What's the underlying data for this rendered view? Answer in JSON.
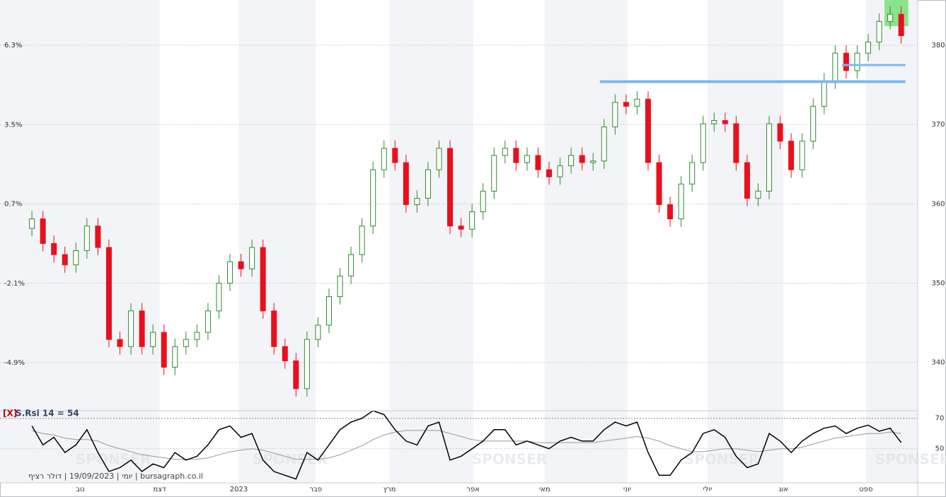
{
  "chart_data": {
    "type": "candlestick",
    "open": [
      356.9,
      358.1,
      355.0,
      353.6,
      352.3,
      354.1,
      357.2,
      354.5,
      342.9,
      342.0,
      346.5,
      342.0,
      343.8,
      339.4,
      342.0,
      342.9,
      343.8,
      346.5,
      350.0,
      352.7,
      351.8,
      354.5,
      346.5,
      342.0,
      340.2,
      336.7,
      342.9,
      344.7,
      348.3,
      350.9,
      353.6,
      357.2,
      364.3,
      367.0,
      365.2,
      359.9,
      360.7,
      364.3,
      367.0,
      357.2,
      356.8,
      359.0,
      361.6,
      366.1,
      367.0,
      365.2,
      366.1,
      364.3,
      363.4,
      364.8,
      366.1,
      365.2,
      365.4,
      369.7,
      372.8,
      372.3,
      373.2,
      365.2,
      359.9,
      358.1,
      362.5,
      365.2,
      370.1,
      370.5,
      370.1,
      365.2,
      360.7,
      361.6,
      370.1,
      367.9,
      364.3,
      367.9,
      372.3,
      375.5,
      379.0,
      376.8,
      379.0,
      380.4,
      383.0,
      383.9
    ],
    "high": [
      359.1,
      359.1,
      356.0,
      354.6,
      355.1,
      358.2,
      358.2,
      355.5,
      343.9,
      347.5,
      347.5,
      344.8,
      344.8,
      343.0,
      343.9,
      344.8,
      347.5,
      351.0,
      353.7,
      353.7,
      355.5,
      355.5,
      347.5,
      343.0,
      341.2,
      343.9,
      345.7,
      349.3,
      351.9,
      354.6,
      358.2,
      365.3,
      368.0,
      368.0,
      366.2,
      361.7,
      365.3,
      368.0,
      368.0,
      358.2,
      360.0,
      362.6,
      367.1,
      368.0,
      368.0,
      367.1,
      367.1,
      365.3,
      365.8,
      367.1,
      367.1,
      366.4,
      370.7,
      373.8,
      373.8,
      374.2,
      374.2,
      366.2,
      360.9,
      363.5,
      366.2,
      371.1,
      371.5,
      371.5,
      371.1,
      366.2,
      362.6,
      371.1,
      371.1,
      368.9,
      368.9,
      373.3,
      376.5,
      380.0,
      380.0,
      380.0,
      381.4,
      384.0,
      384.9,
      384.9
    ],
    "low": [
      355.9,
      354.0,
      352.6,
      351.3,
      351.3,
      353.1,
      353.5,
      341.9,
      341.0,
      341.0,
      341.0,
      341.0,
      338.4,
      338.4,
      341.0,
      341.9,
      342.8,
      345.5,
      349.0,
      350.8,
      350.8,
      345.5,
      341.0,
      339.2,
      335.7,
      335.7,
      341.9,
      343.7,
      347.3,
      349.9,
      352.6,
      356.2,
      363.3,
      364.2,
      358.9,
      358.9,
      359.7,
      363.3,
      356.2,
      355.8,
      355.8,
      358.0,
      360.6,
      365.1,
      364.2,
      364.2,
      363.3,
      362.4,
      362.4,
      363.8,
      364.2,
      364.2,
      364.4,
      368.7,
      371.3,
      371.3,
      364.2,
      358.9,
      357.1,
      357.1,
      361.5,
      364.2,
      369.1,
      369.1,
      364.2,
      359.7,
      359.7,
      360.6,
      366.9,
      363.3,
      363.3,
      366.9,
      371.3,
      374.5,
      375.8,
      375.8,
      378.0,
      379.4,
      382.0,
      380.2
    ],
    "close": [
      358.1,
      355.0,
      353.6,
      352.3,
      354.1,
      357.2,
      354.5,
      342.9,
      342.0,
      346.5,
      342.0,
      343.8,
      339.4,
      342.0,
      342.9,
      343.8,
      346.5,
      350.0,
      352.7,
      351.8,
      354.5,
      346.5,
      342.0,
      340.2,
      336.7,
      342.9,
      344.7,
      348.3,
      350.9,
      353.6,
      357.2,
      364.3,
      367.0,
      365.2,
      359.9,
      360.7,
      364.3,
      367.0,
      357.2,
      356.8,
      359.0,
      361.6,
      366.1,
      367.0,
      365.2,
      366.1,
      364.3,
      363.4,
      364.8,
      366.1,
      365.2,
      365.4,
      369.7,
      372.8,
      372.3,
      373.2,
      365.2,
      359.9,
      358.1,
      362.5,
      365.2,
      370.1,
      370.5,
      370.1,
      365.2,
      360.7,
      361.6,
      370.1,
      367.9,
      364.3,
      367.9,
      372.3,
      375.5,
      379.0,
      376.8,
      379.0,
      380.4,
      383.0,
      383.9,
      381.2
    ],
    "up_color": "#2e8b2e",
    "down_color": "#e8101c",
    "ylim": [
      334.0,
      385.7
    ],
    "yticks": [
      380,
      370,
      360,
      350,
      340
    ],
    "y2lim": [
      -6.57,
      7.9
    ],
    "y2ticks": [
      {
        "value": 6.3,
        "label": "6.3%"
      },
      {
        "value": 3.5,
        "label": "3.5%"
      },
      {
        "value": 0.7,
        "label": "0.7%"
      },
      {
        "value": -2.1,
        "label": "-2.1%"
      },
      {
        "value": -4.9,
        "label": "-4.9%"
      }
    ],
    "grid": true,
    "xlim": [
      -2.9,
      80.5
    ],
    "xticks": [
      {
        "value": 4.4,
        "label": "נוב"
      },
      {
        "value": 11.6,
        "label": "דצמ"
      },
      {
        "value": 18.8,
        "label": "2023"
      },
      {
        "value": 25.8,
        "label": "פבר"
      },
      {
        "value": 32.5,
        "label": "מרץ"
      },
      {
        "value": 40.1,
        "label": "אפר"
      },
      {
        "value": 46.6,
        "label": "מאי"
      },
      {
        "value": 54.1,
        "label": "יוני"
      },
      {
        "value": 61.4,
        "label": "יולי"
      },
      {
        "value": 68.3,
        "label": "אוג"
      },
      {
        "value": 75.8,
        "label": "ספט"
      }
    ],
    "hlines": [
      {
        "value": 375.4,
        "from": 52,
        "color": "#7ab8f0"
      },
      {
        "value": 377.5,
        "from": 74,
        "color": "#7ab8f0"
      }
    ],
    "highlight": {
      "from": 78,
      "to": 79,
      "color": "#66dd66"
    },
    "indicator": {
      "close_button": "[X]",
      "title": "S.Rsi 14 = 54",
      "ylim": [
        27.5,
        75
      ],
      "yticks": [
        70,
        50
      ],
      "series": [
        {
          "color": "#000000",
          "values": [
            65,
            52.5,
            57.5,
            47.5,
            52.5,
            62.5,
            47.5,
            35,
            37.5,
            42.5,
            35,
            40,
            37.5,
            47.5,
            42.5,
            45,
            52.5,
            62.5,
            65,
            57.5,
            60,
            42.5,
            35,
            32.5,
            30,
            47.5,
            42.5,
            52.5,
            62.5,
            67.5,
            70,
            75,
            72.5,
            62.5,
            55,
            52.5,
            65,
            67.5,
            42.5,
            45,
            50,
            55,
            62.5,
            62.5,
            52.5,
            55,
            52.5,
            50,
            55,
            57.5,
            55,
            55,
            62.5,
            67.5,
            65,
            67.5,
            47.5,
            32.5,
            32.5,
            42.5,
            47.5,
            60,
            62.5,
            57.5,
            45,
            37.5,
            40,
            60,
            55,
            47.5,
            55,
            60,
            63.5,
            65,
            60,
            63.5,
            65.5,
            61.5,
            63.5,
            54
          ]
        },
        {
          "color": "#999999",
          "values": [
            62,
            60,
            59,
            57,
            56,
            56,
            55,
            52,
            50,
            48,
            46,
            45,
            44,
            43,
            43,
            43,
            44,
            46,
            48,
            49,
            50,
            49,
            47,
            45,
            43,
            43,
            43,
            44,
            46,
            49,
            52,
            56,
            59,
            61,
            62,
            62,
            62,
            62,
            60,
            58,
            56,
            55,
            55,
            55,
            55,
            55,
            54,
            54,
            54,
            54,
            54,
            54,
            55,
            56,
            57,
            58,
            57,
            55,
            52,
            50,
            48,
            48,
            49,
            50,
            50,
            49,
            48,
            49,
            50,
            50,
            51,
            53,
            55,
            57,
            58,
            59,
            60,
            60,
            61,
            60
          ]
        }
      ]
    },
    "footer": "יומי | 19/09/2023 | דולר רציף | bursagraph.co.il",
    "watermark": "SPONSER"
  }
}
